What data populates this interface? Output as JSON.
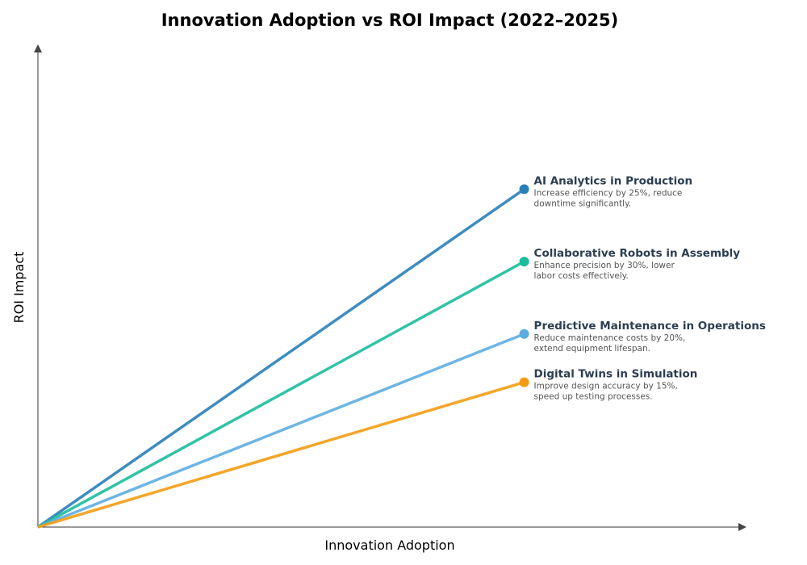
{
  "chart_data": {
    "type": "line",
    "title": "Innovation Adoption vs ROI Impact (2022–2025)",
    "xlabel": "Innovation Adoption",
    "ylabel": "ROI Impact",
    "xlim": [
      0,
      1.02
    ],
    "ylim": [
      0,
      1.0
    ],
    "grid": false,
    "legend": "none (inline labels at line ends)",
    "series": [
      {
        "name": "AI Analytics in Production",
        "desc": [
          "Increase efficiency by 25%, reduce",
          "downtime significantly."
        ],
        "color": "#2980b9",
        "x": [
          0,
          0.7
        ],
        "y": [
          0,
          0.7
        ]
      },
      {
        "name": "Collaborative Robots in Assembly",
        "desc": [
          "Enhance precision by 30%, lower",
          "labor costs effectively."
        ],
        "color": "#1abc9c",
        "x": [
          0,
          0.7
        ],
        "y": [
          0,
          0.55
        ]
      },
      {
        "name": "Predictive Maintenance in Operations",
        "desc": [
          "Reduce maintenance costs by 20%,",
          "extend equipment lifespan."
        ],
        "color": "#5dade2",
        "x": [
          0,
          0.7
        ],
        "y": [
          0,
          0.4
        ]
      },
      {
        "name": "Digital Twins in Simulation",
        "desc": [
          "Improve design accuracy by 15%,",
          "speed up testing processes."
        ],
        "color": "#f39c12",
        "x": [
          0,
          0.7
        ],
        "y": [
          0,
          0.3
        ]
      }
    ]
  }
}
